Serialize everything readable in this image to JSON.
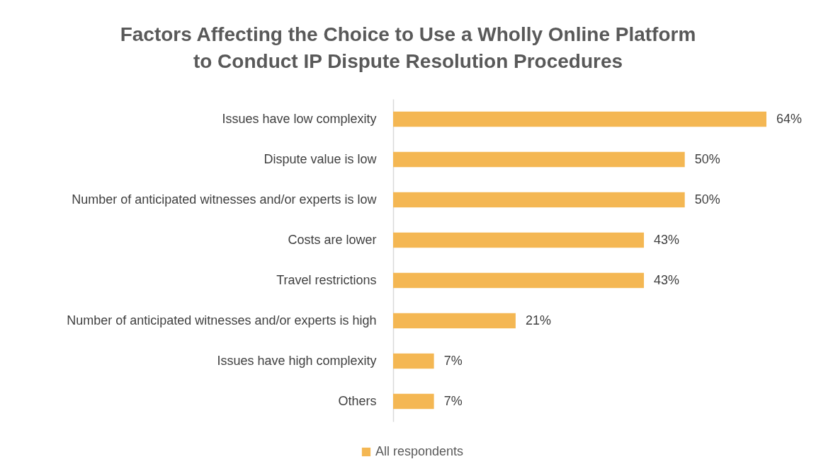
{
  "chart_data": {
    "type": "bar",
    "orientation": "horizontal",
    "title": "Factors Affecting the Choice to Use a Wholly Online Platform\nto Conduct IP Dispute Resolution Procedures",
    "categories": [
      "Issues have low complexity",
      "Dispute value is low",
      "Number of anticipated witnesses and/or experts is low",
      "Costs are lower",
      "Travel restrictions",
      "Number of anticipated witnesses and/or experts is high",
      "Issues have high complexity",
      "Others"
    ],
    "series": [
      {
        "name": "All respondents",
        "color": "#f4b753",
        "values": [
          64,
          50,
          50,
          43,
          43,
          21,
          7,
          7
        ],
        "value_labels": [
          "64%",
          "50%",
          "50%",
          "43%",
          "43%",
          "21%",
          "7%",
          "7%"
        ]
      }
    ],
    "legend": "bottom"
  }
}
